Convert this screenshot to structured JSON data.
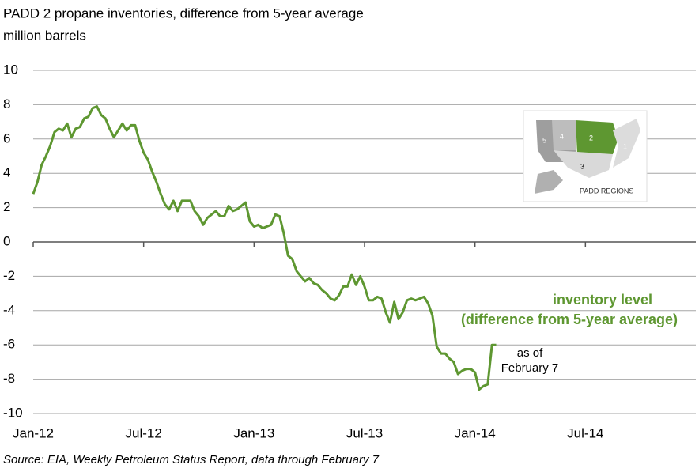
{
  "chart_data": {
    "type": "line",
    "title": "PADD 2 propane inventories, difference from 5-year average",
    "subtitle": "million barrels",
    "source": "Source: EIA, Weekly Petroleum Status Report, data through February 7",
    "annotations": [
      "inventory level",
      "(difference from 5-year average)",
      "as of",
      "February 7"
    ],
    "inset": {
      "label": "PADD REGIONS",
      "regions": [
        "1",
        "2",
        "3",
        "4",
        "5"
      ]
    },
    "color": "#5e9731",
    "grid": true,
    "ylim": [
      -10,
      10
    ],
    "yticks": [
      -10,
      -8,
      -6,
      -4,
      -2,
      0,
      2,
      4,
      6,
      8,
      10
    ],
    "categories": [
      "Jan-12",
      null,
      null,
      null,
      null,
      null,
      null,
      null,
      null,
      null,
      null,
      null,
      null,
      null,
      null,
      null,
      null,
      null,
      null,
      null,
      null,
      null,
      null,
      null,
      null,
      null,
      "Jul-12",
      null,
      null,
      null,
      null,
      null,
      null,
      null,
      null,
      null,
      null,
      null,
      null,
      null,
      null,
      null,
      null,
      null,
      null,
      null,
      null,
      null,
      null,
      null,
      null,
      null,
      "Jan-13",
      null,
      null,
      null,
      null,
      null,
      null,
      null,
      null,
      null,
      null,
      null,
      null,
      null,
      null,
      null,
      null,
      null,
      null,
      null,
      null,
      null,
      null,
      null,
      null,
      null,
      "Jul-13",
      null,
      null,
      null,
      null,
      null,
      null,
      null,
      null,
      null,
      null,
      null,
      null,
      null,
      null,
      null,
      null,
      null,
      null,
      null,
      null,
      null,
      null,
      null,
      null,
      null,
      "Jan-14",
      null,
      null,
      null,
      null,
      null,
      null,
      null,
      null,
      null,
      null,
      null,
      null,
      null,
      null,
      null,
      null,
      null,
      null,
      null,
      null,
      null,
      null,
      null,
      null,
      null,
      "Jul-14",
      null,
      null,
      null,
      null,
      null,
      null,
      null,
      null,
      null,
      null,
      null,
      null,
      null,
      null,
      null,
      null,
      null,
      null,
      null,
      null,
      null,
      null,
      null,
      null,
      null,
      null
    ],
    "values": [
      2.8,
      3.5,
      4.5,
      5.0,
      5.6,
      6.4,
      6.6,
      6.5,
      6.9,
      6.1,
      6.6,
      6.7,
      7.2,
      7.3,
      7.8,
      7.9,
      7.4,
      7.2,
      6.6,
      6.1,
      6.5,
      6.9,
      6.5,
      6.8,
      6.8,
      5.9,
      5.2,
      4.8,
      4.1,
      3.5,
      2.8,
      2.2,
      1.9,
      2.4,
      1.8,
      2.4,
      2.4,
      2.4,
      1.8,
      1.5,
      1.0,
      1.4,
      1.6,
      1.8,
      1.5,
      1.5,
      2.1,
      1.8,
      1.9,
      2.1,
      2.3,
      1.2,
      0.9,
      1.0,
      0.8,
      0.9,
      1.0,
      1.6,
      1.5,
      0.5,
      -0.8,
      -1.0,
      -1.7,
      -2.0,
      -2.3,
      -2.1,
      -2.4,
      -2.5,
      -2.8,
      -3.0,
      -3.3,
      -3.4,
      -3.1,
      -2.6,
      -2.6,
      -1.9,
      -2.5,
      -2.0,
      -2.6,
      -3.4,
      -3.4,
      -3.2,
      -3.3,
      -4.1,
      -4.7,
      -3.5,
      -4.5,
      -4.1,
      -3.4,
      -3.3,
      -3.4,
      -3.3,
      -3.2,
      -3.6,
      -4.3,
      -6.1,
      -6.5,
      -6.5,
      -6.8,
      -7.0,
      -7.7,
      -7.5,
      -7.4,
      -7.4,
      -7.6,
      -8.6,
      -8.4,
      -8.3,
      -6.0,
      -6.0,
      null,
      null,
      null,
      null,
      null,
      null,
      null,
      null,
      null,
      null,
      null,
      null,
      null,
      null,
      null,
      null,
      null,
      null,
      null,
      null,
      null,
      null,
      null,
      null,
      null,
      null,
      null,
      null,
      null,
      null,
      null,
      null,
      null,
      null,
      null,
      null,
      null,
      null,
      null,
      null,
      null,
      null,
      null,
      null,
      null,
      null,
      null
    ]
  }
}
